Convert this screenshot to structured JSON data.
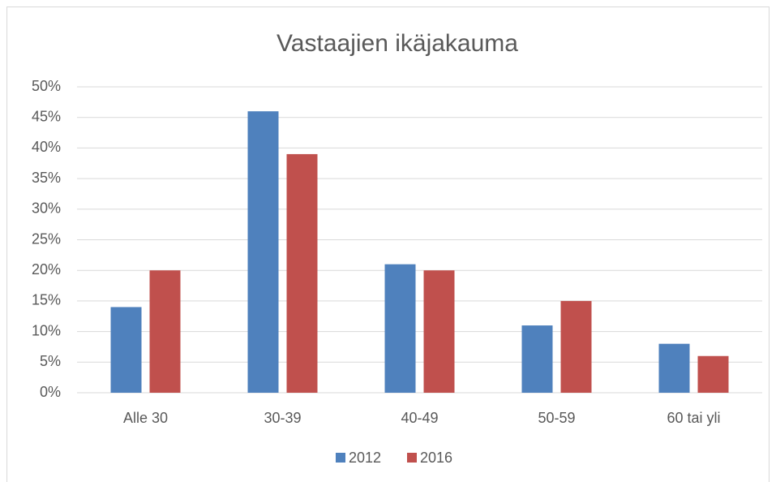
{
  "chart_data": {
    "type": "bar",
    "title": "Vastaajien ikäjakauma",
    "categories": [
      "Alle 30",
      "30-39",
      "40-49",
      "50-59",
      "60 tai yli"
    ],
    "series": [
      {
        "name": "2012",
        "color": "#4f81bd",
        "values": [
          14,
          46,
          21,
          11,
          8
        ]
      },
      {
        "name": "2016",
        "color": "#c0504d",
        "values": [
          20,
          39,
          20,
          15,
          6
        ]
      }
    ],
    "ylim": [
      0,
      50
    ],
    "yticks": [
      {
        "value": 0,
        "label": "0%"
      },
      {
        "value": 5,
        "label": "5%"
      },
      {
        "value": 10,
        "label": "10%"
      },
      {
        "value": 15,
        "label": "15%"
      },
      {
        "value": 20,
        "label": "20%"
      },
      {
        "value": 25,
        "label": "25%"
      },
      {
        "value": 30,
        "label": "30%"
      },
      {
        "value": 35,
        "label": "35%"
      },
      {
        "value": 40,
        "label": "40%"
      },
      {
        "value": 45,
        "label": "45%"
      },
      {
        "value": 50,
        "label": "50%"
      }
    ],
    "grid": true,
    "legend": "bottom"
  }
}
